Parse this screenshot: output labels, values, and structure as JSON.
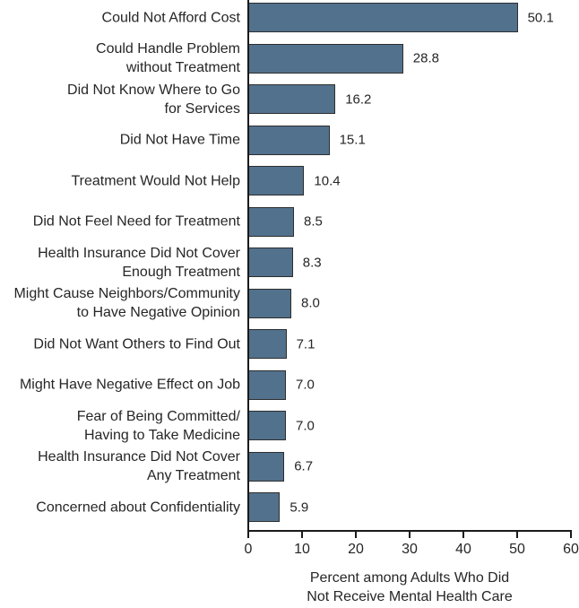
{
  "chart_data": {
    "type": "bar",
    "orientation": "horizontal",
    "title": "",
    "xlabel": "Percent among Adults Who Did\nNot Receive Mental Health Care",
    "ylabel": "",
    "xlim": [
      0,
      60
    ],
    "xtick_values": [
      0,
      10,
      20,
      30,
      40,
      50,
      60
    ],
    "xtick_labels": [
      "0",
      "10",
      "20",
      "30",
      "40",
      "50",
      "60"
    ],
    "grid": false,
    "legend": "none",
    "colors": {
      "bar_fill": "#52718C",
      "bar_border": "#2E2E2E",
      "axis": "#1A1A1A",
      "text": "#262626"
    },
    "categories": [
      "Could Not Afford Cost",
      "Could Handle Problem\nwithout Treatment",
      "Did Not Know Where to Go\nfor Services",
      "Did Not Have Time",
      "Treatment Would Not Help",
      "Did Not Feel Need for Treatment",
      "Health Insurance Did Not Cover\nEnough Treatment",
      "Might Cause Neighbors/Community\nto Have Negative Opinion",
      "Did Not Want Others to Find Out",
      "Might Have Negative Effect on Job",
      "Fear of Being Committed/\nHaving to Take Medicine",
      "Health Insurance Did Not Cover\nAny Treatment",
      "Concerned about Confidentiality"
    ],
    "values": [
      50.1,
      28.8,
      16.2,
      15.1,
      10.4,
      8.5,
      8.3,
      8.0,
      7.1,
      7.0,
      7.0,
      6.7,
      5.9
    ],
    "value_labels": [
      "50.1",
      "28.8",
      "16.2",
      "15.1",
      "10.4",
      "8.5",
      "8.3",
      "8.0",
      "7.1",
      "7.0",
      "7.0",
      "6.7",
      "5.9"
    ]
  }
}
